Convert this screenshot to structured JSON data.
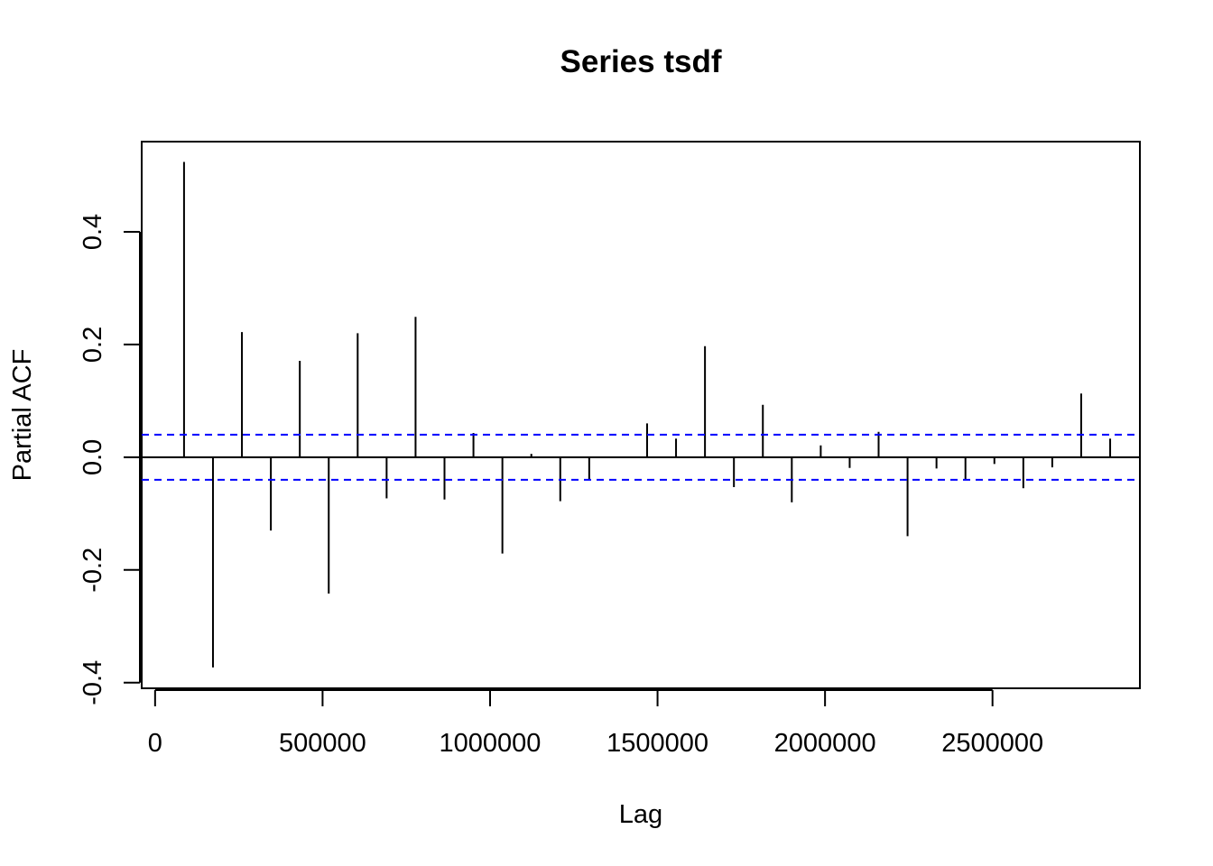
{
  "chart_data": {
    "type": "bar",
    "subtype": "pacf-spike",
    "title": "Series  tsdf",
    "xlabel": "Lag",
    "ylabel": "Partial ACF",
    "xlim": [
      -40000,
      2940000
    ],
    "ylim": [
      -0.41,
      0.56
    ],
    "x_ticks": [
      0,
      500000,
      1000000,
      1500000,
      2000000,
      2500000
    ],
    "x_tick_labels": [
      "0",
      "500000",
      "1000000",
      "1500000",
      "2000000",
      "2500000"
    ],
    "y_ticks": [
      -0.4,
      -0.2,
      0.0,
      0.2,
      0.4
    ],
    "y_tick_labels": [
      "-0.4",
      "-0.2",
      "0.0",
      "0.2",
      "0.4"
    ],
    "confidence_bounds": [
      0.04,
      -0.04
    ],
    "colors": {
      "spike": "#000000",
      "confidence": "#0000ff",
      "zero_line": "#000000"
    },
    "x": [
      86400,
      172800,
      259200,
      345600,
      432000,
      518400,
      604800,
      691200,
      777600,
      864000,
      950400,
      1036800,
      1123200,
      1209600,
      1296000,
      1382400,
      1468800,
      1555200,
      1641600,
      1728000,
      1814400,
      1900800,
      1987200,
      2073600,
      2160000,
      2246400,
      2332800,
      2419200,
      2505600,
      2592000,
      2678400,
      2764800,
      2851200
    ],
    "values": [
      0.524,
      -0.373,
      0.222,
      -0.13,
      0.171,
      -0.242,
      0.22,
      -0.073,
      0.249,
      -0.075,
      0.043,
      -0.171,
      0.006,
      -0.078,
      -0.04,
      0.0,
      0.06,
      0.033,
      0.197,
      -0.053,
      0.093,
      -0.08,
      0.021,
      -0.019,
      0.045,
      -0.14,
      -0.02,
      -0.04,
      -0.012,
      -0.055,
      -0.018,
      0.113,
      0.033
    ]
  }
}
